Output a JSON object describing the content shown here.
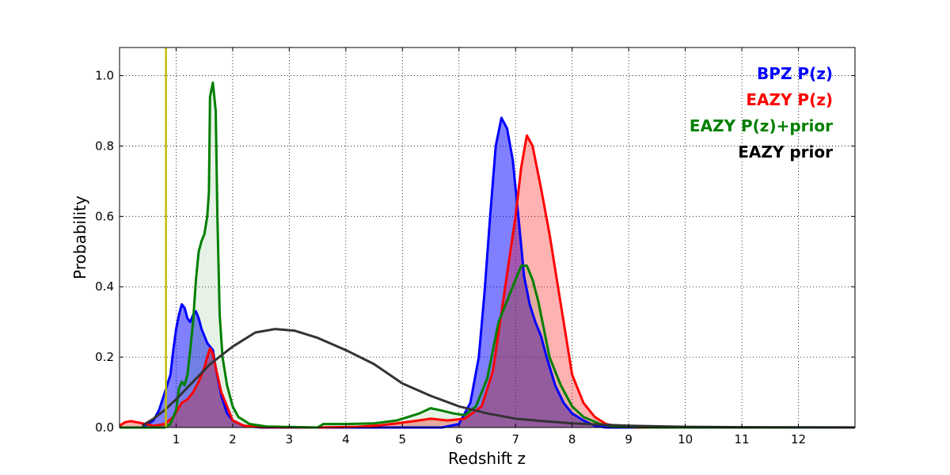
{
  "chart_data": {
    "type": "area",
    "title": "",
    "xlabel": "Redshift z",
    "ylabel": "Probability",
    "xlim": [
      0,
      13
    ],
    "ylim": [
      0,
      1.08
    ],
    "x_ticks": [
      1,
      2,
      3,
      4,
      5,
      6,
      7,
      8,
      9,
      10,
      11,
      12
    ],
    "y_ticks": [
      0.0,
      0.2,
      0.4,
      0.6,
      0.8,
      1.0
    ],
    "y_tick_labels": [
      "0.0",
      "0.2",
      "0.4",
      "0.6",
      "0.8",
      "1.0"
    ],
    "grid": true,
    "legend_position": "top-right",
    "vline": {
      "x": 0.82,
      "color": "#bfbf00"
    },
    "series": [
      {
        "name": "BPZ P(z)",
        "color": "#0000ff",
        "fill": "#0000ff",
        "fill_opacity": 0.5,
        "points": [
          [
            0,
            0
          ],
          [
            0.4,
            0
          ],
          [
            0.6,
            0.02
          ],
          [
            0.7,
            0.05
          ],
          [
            0.8,
            0.1
          ],
          [
            0.9,
            0.15
          ],
          [
            0.95,
            0.22
          ],
          [
            1.0,
            0.28
          ],
          [
            1.05,
            0.32
          ],
          [
            1.1,
            0.35
          ],
          [
            1.15,
            0.34
          ],
          [
            1.2,
            0.31
          ],
          [
            1.25,
            0.3
          ],
          [
            1.3,
            0.32
          ],
          [
            1.35,
            0.33
          ],
          [
            1.4,
            0.31
          ],
          [
            1.45,
            0.28
          ],
          [
            1.5,
            0.26
          ],
          [
            1.55,
            0.24
          ],
          [
            1.6,
            0.23
          ],
          [
            1.65,
            0.22
          ],
          [
            1.7,
            0.17
          ],
          [
            1.8,
            0.09
          ],
          [
            1.9,
            0.04
          ],
          [
            2.0,
            0.02
          ],
          [
            2.2,
            0.005
          ],
          [
            2.5,
            0
          ],
          [
            5.7,
            0
          ],
          [
            6.0,
            0.01
          ],
          [
            6.2,
            0.07
          ],
          [
            6.35,
            0.2
          ],
          [
            6.45,
            0.38
          ],
          [
            6.55,
            0.6
          ],
          [
            6.65,
            0.8
          ],
          [
            6.75,
            0.88
          ],
          [
            6.85,
            0.85
          ],
          [
            6.95,
            0.76
          ],
          [
            7.05,
            0.6
          ],
          [
            7.15,
            0.43
          ],
          [
            7.25,
            0.35
          ],
          [
            7.35,
            0.3
          ],
          [
            7.45,
            0.26
          ],
          [
            7.55,
            0.2
          ],
          [
            7.7,
            0.12
          ],
          [
            7.85,
            0.07
          ],
          [
            8.0,
            0.04
          ],
          [
            8.2,
            0.02
          ],
          [
            8.4,
            0.005
          ],
          [
            8.6,
            0
          ],
          [
            13,
            0
          ]
        ]
      },
      {
        "name": "EAZY P(z)",
        "color": "#ff0000",
        "fill": "#ff0000",
        "fill_opacity": 0.3,
        "points": [
          [
            0,
            0.005
          ],
          [
            0.1,
            0.015
          ],
          [
            0.2,
            0.018
          ],
          [
            0.4,
            0.012
          ],
          [
            0.6,
            0.005
          ],
          [
            0.8,
            0.01
          ],
          [
            0.95,
            0.03
          ],
          [
            1.1,
            0.07
          ],
          [
            1.2,
            0.08
          ],
          [
            1.3,
            0.1
          ],
          [
            1.4,
            0.13
          ],
          [
            1.5,
            0.17
          ],
          [
            1.55,
            0.2
          ],
          [
            1.6,
            0.225
          ],
          [
            1.65,
            0.21
          ],
          [
            1.7,
            0.17
          ],
          [
            1.8,
            0.1
          ],
          [
            1.9,
            0.06
          ],
          [
            2.0,
            0.02
          ],
          [
            2.2,
            0.005
          ],
          [
            2.5,
            0.001
          ],
          [
            3.5,
            0
          ],
          [
            4.2,
            0.002
          ],
          [
            4.6,
            0.006
          ],
          [
            4.9,
            0.012
          ],
          [
            5.2,
            0.018
          ],
          [
            5.5,
            0.025
          ],
          [
            5.8,
            0.02
          ],
          [
            6.1,
            0.025
          ],
          [
            6.4,
            0.06
          ],
          [
            6.6,
            0.16
          ],
          [
            6.8,
            0.38
          ],
          [
            7.0,
            0.6
          ],
          [
            7.1,
            0.74
          ],
          [
            7.2,
            0.83
          ],
          [
            7.3,
            0.8
          ],
          [
            7.45,
            0.68
          ],
          [
            7.6,
            0.55
          ],
          [
            7.8,
            0.35
          ],
          [
            8.0,
            0.15
          ],
          [
            8.2,
            0.07
          ],
          [
            8.4,
            0.03
          ],
          [
            8.6,
            0.01
          ],
          [
            8.8,
            0.003
          ],
          [
            9.2,
            0
          ],
          [
            13,
            0
          ]
        ]
      },
      {
        "name": "EAZY P(z)+prior",
        "color": "#007f00",
        "fill": "#007f00",
        "fill_opacity": 0.1,
        "points": [
          [
            0,
            0
          ],
          [
            0.8,
            0
          ],
          [
            0.9,
            0.01
          ],
          [
            1.0,
            0.05
          ],
          [
            1.05,
            0.11
          ],
          [
            1.1,
            0.13
          ],
          [
            1.15,
            0.12
          ],
          [
            1.2,
            0.15
          ],
          [
            1.25,
            0.22
          ],
          [
            1.3,
            0.3
          ],
          [
            1.35,
            0.42
          ],
          [
            1.4,
            0.5
          ],
          [
            1.45,
            0.53
          ],
          [
            1.5,
            0.55
          ],
          [
            1.55,
            0.6
          ],
          [
            1.58,
            0.67
          ],
          [
            1.6,
            0.94
          ],
          [
            1.65,
            0.98
          ],
          [
            1.7,
            0.9
          ],
          [
            1.73,
            0.6
          ],
          [
            1.77,
            0.32
          ],
          [
            1.82,
            0.2
          ],
          [
            1.9,
            0.12
          ],
          [
            2.0,
            0.06
          ],
          [
            2.1,
            0.03
          ],
          [
            2.3,
            0.01
          ],
          [
            2.6,
            0.003
          ],
          [
            3.5,
            0
          ],
          [
            3.6,
            0.01
          ],
          [
            4.0,
            0.01
          ],
          [
            4.5,
            0.012
          ],
          [
            4.9,
            0.02
          ],
          [
            5.1,
            0.03
          ],
          [
            5.3,
            0.04
          ],
          [
            5.5,
            0.055
          ],
          [
            5.7,
            0.048
          ],
          [
            5.9,
            0.04
          ],
          [
            6.1,
            0.035
          ],
          [
            6.3,
            0.06
          ],
          [
            6.5,
            0.14
          ],
          [
            6.7,
            0.3
          ],
          [
            6.9,
            0.38
          ],
          [
            7.0,
            0.42
          ],
          [
            7.1,
            0.46
          ],
          [
            7.2,
            0.46
          ],
          [
            7.3,
            0.42
          ],
          [
            7.4,
            0.36
          ],
          [
            7.5,
            0.28
          ],
          [
            7.6,
            0.2
          ],
          [
            7.8,
            0.12
          ],
          [
            8.0,
            0.06
          ],
          [
            8.2,
            0.03
          ],
          [
            8.5,
            0.01
          ],
          [
            8.8,
            0.002
          ],
          [
            9.5,
            0
          ],
          [
            13,
            0
          ]
        ]
      },
      {
        "name": "EAZY prior",
        "color": "#333333",
        "fill": "none",
        "fill_opacity": 0,
        "points": [
          [
            0.4,
            0.005
          ],
          [
            0.6,
            0.025
          ],
          [
            0.8,
            0.05
          ],
          [
            1.0,
            0.08
          ],
          [
            1.3,
            0.13
          ],
          [
            1.6,
            0.18
          ],
          [
            2.0,
            0.23
          ],
          [
            2.4,
            0.27
          ],
          [
            2.75,
            0.28
          ],
          [
            3.1,
            0.275
          ],
          [
            3.5,
            0.255
          ],
          [
            4.0,
            0.22
          ],
          [
            4.5,
            0.18
          ],
          [
            5.0,
            0.125
          ],
          [
            5.5,
            0.09
          ],
          [
            6.0,
            0.06
          ],
          [
            6.5,
            0.04
          ],
          [
            7.0,
            0.025
          ],
          [
            7.5,
            0.018
          ],
          [
            8.0,
            0.012
          ],
          [
            8.5,
            0.008
          ],
          [
            9.0,
            0.005
          ],
          [
            10.0,
            0.002
          ],
          [
            11.0,
            0.001
          ],
          [
            12.0,
            0.0005
          ],
          [
            13.0,
            0.0002
          ]
        ]
      }
    ]
  }
}
